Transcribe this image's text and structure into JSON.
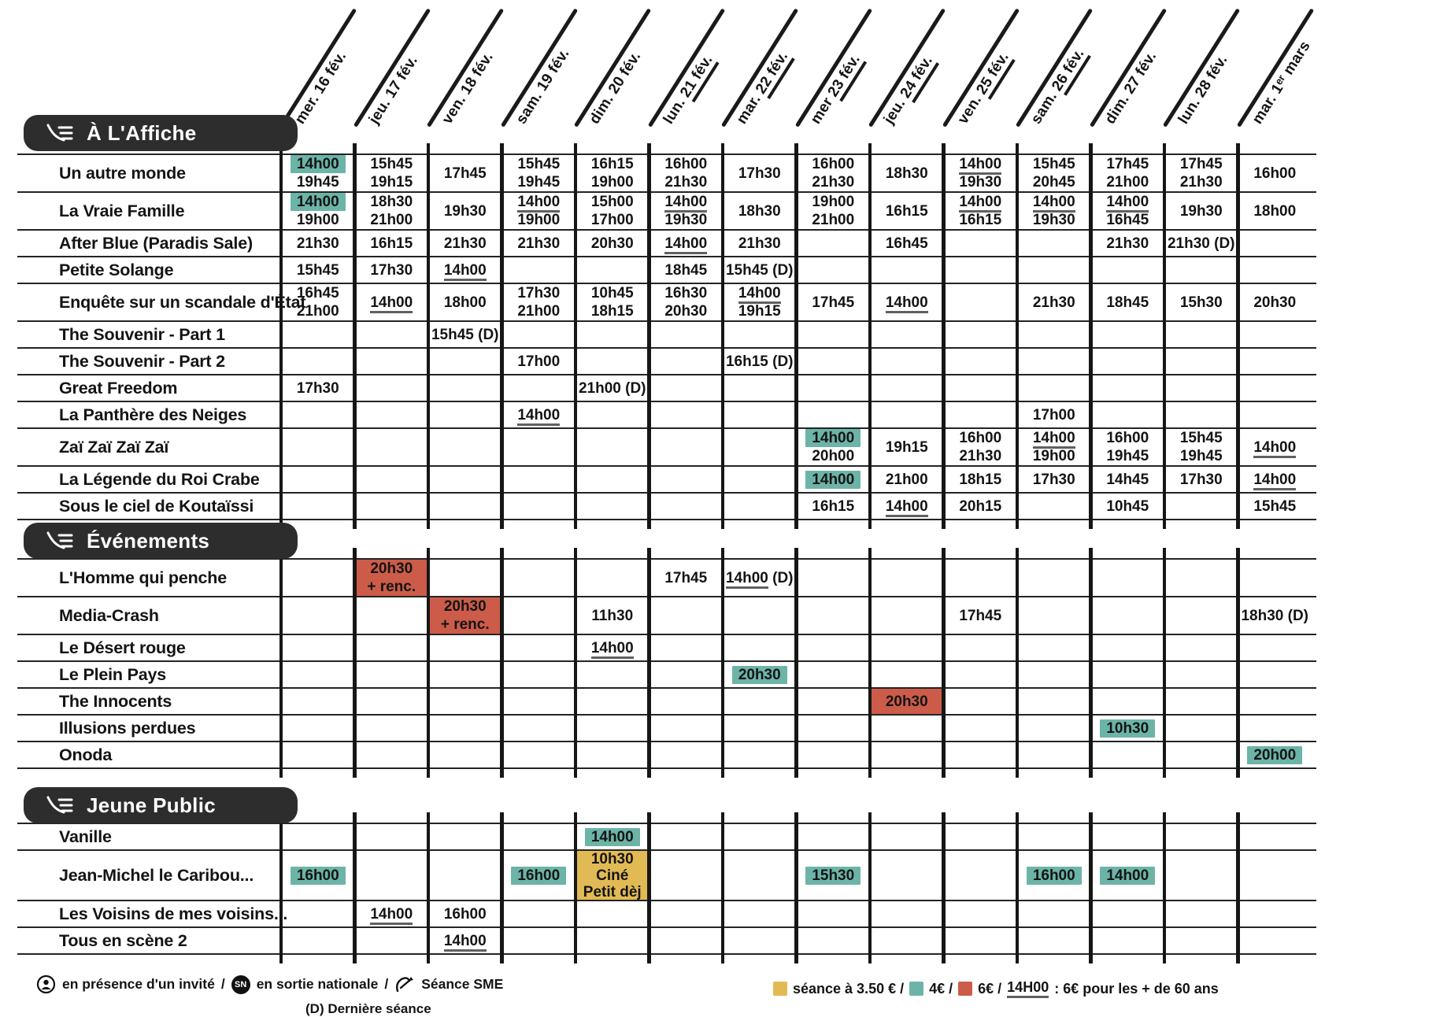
{
  "colors": {
    "teal": "#6cb4a7",
    "red": "#cc5c49",
    "yellow": "#e2ba55",
    "pill": "#2d2d2d",
    "line": "#1a1a1a"
  },
  "dates": [
    {
      "label": "mer. 16 fév."
    },
    {
      "label": "jeu. 17 fév."
    },
    {
      "label": "ven. 18 fév."
    },
    {
      "label": "sam. 19 fév."
    },
    {
      "label": "dim. 20 fév."
    },
    {
      "label": "lun. 21 fév.",
      "u": true
    },
    {
      "label": "mar. 22 fév.",
      "u": true
    },
    {
      "label": "mer 23 fév.",
      "u": true
    },
    {
      "label": "jeu. 24 fév.",
      "u": true
    },
    {
      "label": "ven. 25 fév.",
      "u": true
    },
    {
      "label": "sam. 26 fév.",
      "u": true
    },
    {
      "label": "dim. 27 fév."
    },
    {
      "label": "lun. 28 fév."
    },
    {
      "label": "mar. 1ᵉʳ mars"
    }
  ],
  "sections": [
    {
      "title": "À L'Affiche",
      "rows": [
        {
          "title": "Un autre monde",
          "cells": {
            "0": {
              "lines": [
                "¤14h00¤",
                "19h45"
              ]
            },
            "1": {
              "lines": [
                "15h45",
                "19h15"
              ]
            },
            "2": {
              "lines": [
                "17h45"
              ]
            },
            "3": {
              "lines": [
                "15h45",
                "19h45"
              ]
            },
            "4": {
              "lines": [
                "16h15",
                "19h00"
              ]
            },
            "5": {
              "lines": [
                "16h00",
                "21h30"
              ]
            },
            "6": {
              "lines": [
                "17h30"
              ]
            },
            "7": {
              "lines": [
                "16h00",
                "21h30"
              ]
            },
            "8": {
              "lines": [
                "18h30"
              ]
            },
            "9": {
              "lines": [
                "§14h00§",
                "19h30"
              ]
            },
            "10": {
              "lines": [
                "15h45",
                "20h45"
              ]
            },
            "11": {
              "lines": [
                "17h45",
                "21h00"
              ]
            },
            "12": {
              "lines": [
                "17h45",
                "21h30"
              ]
            },
            "13": {
              "lines": [
                "16h00"
              ]
            }
          }
        },
        {
          "title": "La Vraie Famille",
          "cells": {
            "0": {
              "lines": [
                "¤14h00¤",
                "19h00"
              ]
            },
            "1": {
              "lines": [
                "18h30",
                "21h00"
              ]
            },
            "2": {
              "lines": [
                "19h30"
              ]
            },
            "3": {
              "lines": [
                "§14h00§",
                "19h00"
              ]
            },
            "4": {
              "lines": [
                "15h00",
                "17h00"
              ]
            },
            "5": {
              "lines": [
                "§14h00§",
                "19h30"
              ]
            },
            "6": {
              "lines": [
                "18h30"
              ]
            },
            "7": {
              "lines": [
                "19h00",
                "21h00"
              ]
            },
            "8": {
              "lines": [
                "16h15"
              ]
            },
            "9": {
              "lines": [
                "§14h00§",
                "16h15"
              ]
            },
            "10": {
              "lines": [
                "§14h00§",
                "19h30"
              ]
            },
            "11": {
              "lines": [
                "§14h00§",
                "16h45"
              ]
            },
            "12": {
              "lines": [
                "19h30"
              ]
            },
            "13": {
              "lines": [
                "18h00"
              ]
            }
          }
        },
        {
          "title": "After Blue (Paradis Sale)",
          "cells": {
            "0": {
              "lines": [
                "21h30"
              ]
            },
            "1": {
              "lines": [
                "16h15"
              ]
            },
            "2": {
              "lines": [
                "21h30"
              ]
            },
            "3": {
              "lines": [
                "21h30"
              ]
            },
            "4": {
              "lines": [
                "20h30"
              ]
            },
            "5": {
              "lines": [
                "§14h00§"
              ]
            },
            "6": {
              "lines": [
                "21h30"
              ]
            },
            "8": {
              "lines": [
                "16h45"
              ]
            },
            "11": {
              "lines": [
                "21h30"
              ]
            },
            "12": {
              "lines": [
                "21h30 (D)"
              ]
            }
          }
        },
        {
          "title": "Petite Solange",
          "cells": {
            "0": {
              "lines": [
                "15h45"
              ]
            },
            "1": {
              "lines": [
                "17h30"
              ]
            },
            "2": {
              "lines": [
                "§14h00§"
              ]
            },
            "5": {
              "lines": [
                "18h45"
              ]
            },
            "6": {
              "lines": [
                "15h45 (D)"
              ]
            }
          }
        },
        {
          "title": "Enquête sur un scandale d'État",
          "cells": {
            "0": {
              "lines": [
                "16h45",
                "21h00"
              ]
            },
            "1": {
              "lines": [
                "§14h00§"
              ]
            },
            "2": {
              "lines": [
                "18h00"
              ]
            },
            "3": {
              "lines": [
                "17h30",
                "21h00"
              ]
            },
            "4": {
              "lines": [
                "10h45",
                "18h15"
              ]
            },
            "5": {
              "lines": [
                "16h30",
                "20h30"
              ]
            },
            "6": {
              "lines": [
                "§14h00§",
                "19h15"
              ]
            },
            "7": {
              "lines": [
                "17h45"
              ]
            },
            "8": {
              "lines": [
                "§14h00§"
              ]
            },
            "10": {
              "lines": [
                "21h30"
              ]
            },
            "11": {
              "lines": [
                "18h45"
              ]
            },
            "12": {
              "lines": [
                "15h30"
              ]
            },
            "13": {
              "lines": [
                "20h30"
              ]
            }
          }
        },
        {
          "title": "The Souvenir - Part 1",
          "cells": {
            "2": {
              "lines": [
                "15h45 (D)"
              ]
            }
          }
        },
        {
          "title": "The Souvenir - Part 2",
          "cells": {
            "3": {
              "lines": [
                "17h00"
              ]
            },
            "6": {
              "lines": [
                "16h15 (D)"
              ]
            }
          }
        },
        {
          "title": "Great Freedom",
          "cells": {
            "0": {
              "lines": [
                "17h30"
              ]
            },
            "4": {
              "lines": [
                "21h00 (D)"
              ]
            }
          }
        },
        {
          "title": "La Panthère des Neiges",
          "cells": {
            "3": {
              "lines": [
                "§14h00§"
              ]
            },
            "10": {
              "lines": [
                "17h00"
              ]
            }
          }
        },
        {
          "title": "Zaï Zaï Zaï Zaï",
          "cells": {
            "7": {
              "lines": [
                "¤14h00¤",
                "20h00"
              ]
            },
            "8": {
              "lines": [
                "19h15"
              ]
            },
            "9": {
              "lines": [
                "16h00",
                "21h30"
              ]
            },
            "10": {
              "lines": [
                "§14h00§",
                "19h00"
              ]
            },
            "11": {
              "lines": [
                "16h00",
                "19h45"
              ]
            },
            "12": {
              "lines": [
                "15h45",
                "19h45"
              ]
            },
            "13": {
              "lines": [
                "§14h00§"
              ]
            }
          }
        },
        {
          "title": "La Légende du Roi Crabe",
          "cells": {
            "7": {
              "lines": [
                "¤14h00¤"
              ]
            },
            "8": {
              "lines": [
                "21h00"
              ]
            },
            "9": {
              "lines": [
                "18h15"
              ]
            },
            "10": {
              "lines": [
                "17h30"
              ]
            },
            "11": {
              "lines": [
                "14h45"
              ]
            },
            "12": {
              "lines": [
                "17h30"
              ]
            },
            "13": {
              "lines": [
                "§14h00§"
              ]
            }
          }
        },
        {
          "title": "Sous le ciel de Koutaïssi",
          "cells": {
            "7": {
              "lines": [
                "16h15"
              ]
            },
            "8": {
              "lines": [
                "§14h00§"
              ]
            },
            "9": {
              "lines": [
                "20h15"
              ]
            },
            "11": {
              "lines": [
                "10h45"
              ]
            },
            "13": {
              "lines": [
                "15h45"
              ]
            }
          }
        }
      ]
    },
    {
      "title": "Événements",
      "rows": [
        {
          "title": "L'Homme qui penche",
          "cells": {
            "1": {
              "box": "red",
              "lines": [
                "20h30",
                "+ renc."
              ]
            },
            "5": {
              "lines": [
                "17h45"
              ]
            },
            "6": {
              "lines": [
                "§14h00§ (D)"
              ]
            }
          }
        },
        {
          "title": "Media-Crash",
          "cells": {
            "2": {
              "box": "red",
              "lines": [
                "20h30",
                "+ renc."
              ]
            },
            "4": {
              "lines": [
                "11h30"
              ]
            },
            "9": {
              "lines": [
                "17h45"
              ]
            },
            "13": {
              "lines": [
                "18h30 (D)"
              ]
            }
          }
        },
        {
          "title": "Le Désert rouge",
          "cells": {
            "4": {
              "lines": [
                "§14h00§"
              ]
            }
          }
        },
        {
          "title": "Le Plein Pays",
          "cells": {
            "6": {
              "lines": [
                "¤20h30¤"
              ]
            }
          }
        },
        {
          "title": "The Innocents",
          "cells": {
            "8": {
              "box": "red",
              "lines": [
                "20h30"
              ]
            }
          }
        },
        {
          "title": "Illusions perdues",
          "cells": {
            "11": {
              "lines": [
                "¤10h30¤"
              ]
            }
          }
        },
        {
          "title": "Onoda",
          "cells": {
            "13": {
              "lines": [
                "¤20h00¤"
              ]
            }
          }
        }
      ]
    },
    {
      "title": "Jeune Public",
      "rows": [
        {
          "title": "Vanille",
          "cells": {
            "4": {
              "lines": [
                "¤14h00¤"
              ]
            }
          }
        },
        {
          "title": "Jean-Michel le Caribou...",
          "cells": {
            "0": {
              "lines": [
                "¤16h00¤"
              ]
            },
            "3": {
              "lines": [
                "¤16h00¤"
              ]
            },
            "4": {
              "box": "yellow",
              "lines": [
                "10h30",
                "Ciné",
                "Petit dèj"
              ]
            },
            "7": {
              "lines": [
                "¤15h30¤"
              ]
            },
            "10": {
              "lines": [
                "¤16h00¤"
              ]
            },
            "11": {
              "lines": [
                "¤14h00¤"
              ]
            }
          }
        },
        {
          "title": "Les Voisins de mes voisins...",
          "cells": {
            "1": {
              "lines": [
                "§14h00§"
              ]
            },
            "2": {
              "lines": [
                "16h00"
              ]
            }
          }
        },
        {
          "title": "Tous en scène 2",
          "cells": {
            "2": {
              "lines": [
                "§14h00§"
              ]
            }
          }
        }
      ]
    }
  ],
  "footer": {
    "invite_label": "en présence d'un invité",
    "slash1": "/",
    "sn_badge": "SN",
    "sortie_label": "en sortie nationale",
    "slash2": "/",
    "sme_label": "Séance SME",
    "derniere_label": "(D) Dernière séance",
    "price_yellow": "séance à 3.50 € /",
    "price_teal": "4€ /",
    "price_red": "6€ /",
    "price_hour": "14H00",
    "price_suffix": ": 6€ pour les + de 60 ans"
  }
}
